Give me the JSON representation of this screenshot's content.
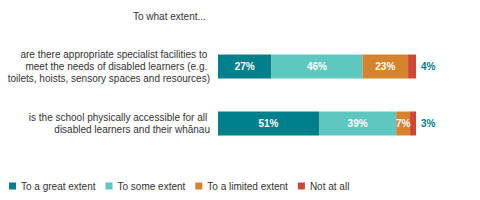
{
  "chart_data": {
    "type": "bar",
    "title": "To what extent...",
    "orientation": "horizontal",
    "stacked": true,
    "data_labels": true,
    "tick_labels": "y",
    "legend": "bottom",
    "grid": false,
    "xlim": [
      0,
      100
    ],
    "categories": [
      "are there appropriate specialist facilities to meet the needs of disabled learners (e.g. toilets, hoists, sensory spaces and resources)",
      "is the school physically accessible for all disabled learners and their whānau"
    ],
    "series": [
      {
        "name": "To a great extent",
        "color": "#00808a",
        "values": [
          27,
          51
        ],
        "value_labels": [
          "27%",
          "51%"
        ]
      },
      {
        "name": "To some extent",
        "color": "#5ec7bf",
        "values": [
          46,
          39
        ],
        "value_labels": [
          "46%",
          "39%"
        ]
      },
      {
        "name": "To a limited extent",
        "color": "#d6832e",
        "values": [
          23,
          7
        ],
        "value_labels": [
          "23%",
          "7%"
        ]
      },
      {
        "name": "Not at all",
        "color": "#cf4638",
        "values": [
          4,
          3
        ],
        "value_labels": [
          "4%",
          "3%"
        ]
      }
    ]
  }
}
